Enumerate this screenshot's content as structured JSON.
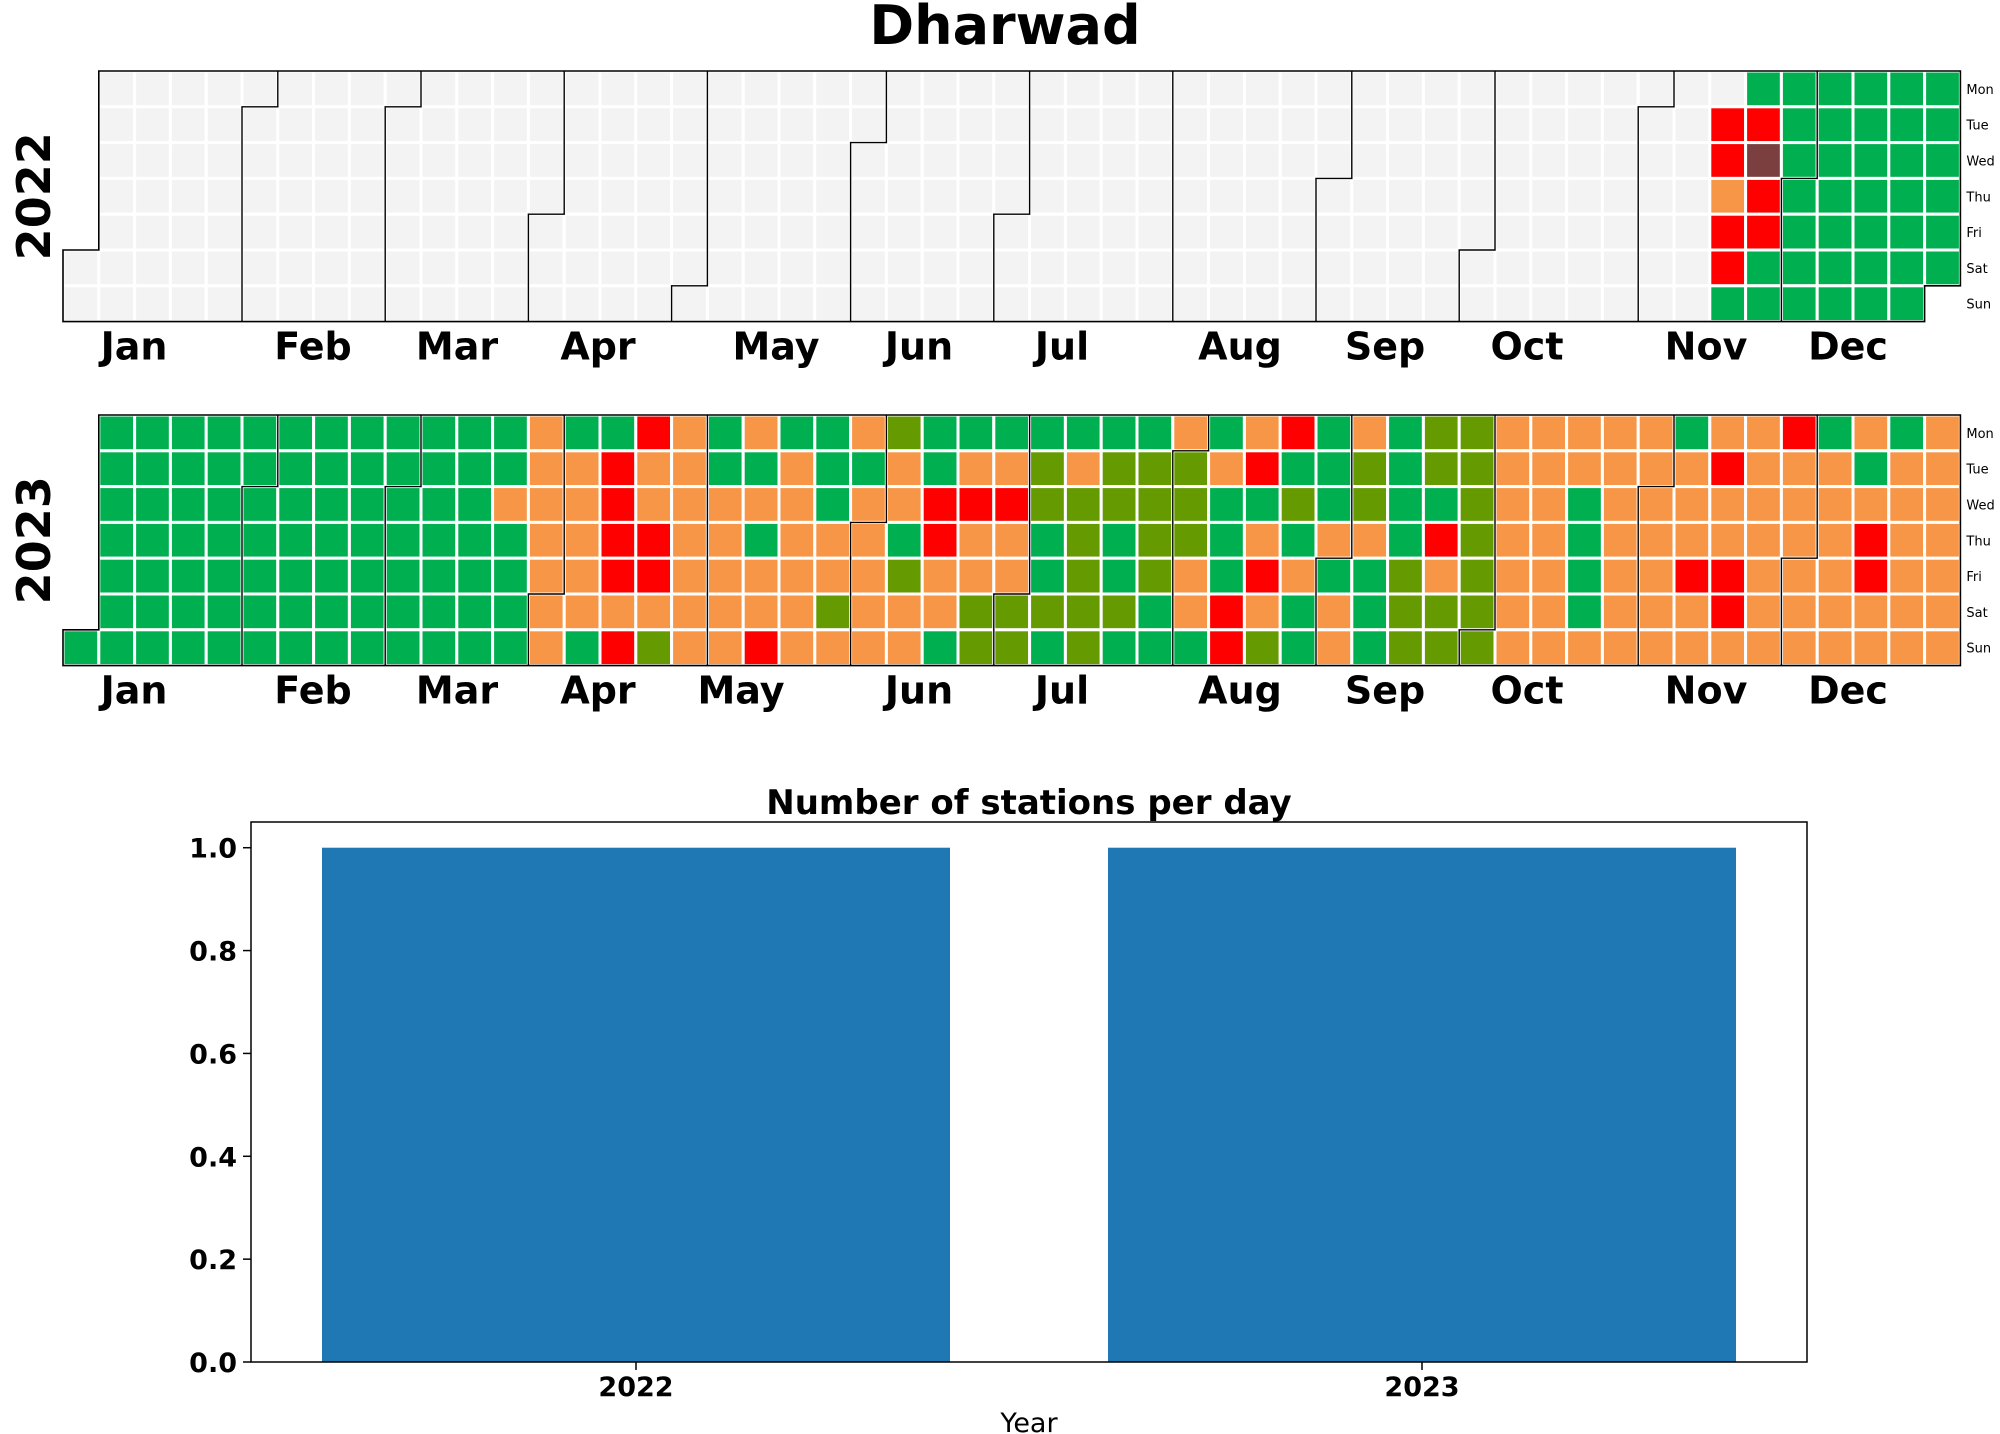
{
  "figure_title": "Dharwad",
  "calendar": {
    "day_labels": [
      "Mon",
      "Tue",
      "Wed",
      "Thu",
      "Fri",
      "Sat",
      "Sun"
    ],
    "month_labels": [
      "Jan",
      "Feb",
      "Mar",
      "Apr",
      "May",
      "Jun",
      "Jul",
      "Aug",
      "Sep",
      "Oct",
      "Nov",
      "Dec"
    ],
    "colors": {
      "no_data": "#f3f3f3",
      "G": "#00b050",
      "L": "#659a00",
      "O": "#f79646",
      "R": "#ff0000",
      "M": "#7b3f3f",
      "W": "#f3f3f3"
    },
    "years": [
      {
        "year": "2022",
        "first_weekday": 5,
        "notes": "columns of 7 chars Mon..Sun; '.' = no data / outside year",
        "weeks": [
          ".....WW",
          "WWWWWWW",
          "WWWWWWW",
          "WWWWWWW",
          "WWWWWWW",
          "WWWWWWW",
          "WWWWWWW",
          "WWWWWWW",
          "WWWWWWW",
          "WWWWWWW",
          "WWWWWWW",
          "WWWWWWW",
          "WWWWWWW",
          "WWWWWWW",
          "WWWWWWW",
          "WWWWWWW",
          "WWWWWWW",
          "WWWWWWW",
          "WWWWWWW",
          "WWWWWWW",
          "WWWWWWW",
          "WWWWWWW",
          "WWWWWWW",
          "WWWWWWW",
          "WWWWWWW",
          "WWWWWWW",
          "WWWWWWW",
          "WWWWWWW",
          "WWWWWWW",
          "WWWWWWW",
          "WWWWWWW",
          "WWWWWWW",
          "WWWWWWW",
          "WWWWWWW",
          "WWWWWWW",
          "WWWWWWW",
          "WWWWWWW",
          "WWWWWWW",
          "WWWWWWW",
          "WWWWWWW",
          "WWWWWWW",
          "WWWWWWW",
          "WWWWWWW",
          "WWWWWWW",
          "WWWWWWW",
          "WWWWWWW",
          "WRRORRG",
          "GRMRRGG",
          "GGGGGGG",
          "GGGGGGG",
          "GGGGGGG",
          "GGGGGGG",
          "GGGGGG."
        ]
      },
      {
        "year": "2023",
        "first_weekday": 6,
        "weeks": [
          "......G",
          "GGGGGGG",
          "GGGGGGG",
          "GGGGGGG",
          "GGGGGGG",
          "GGGGGGG",
          "GGGGGGG",
          "GGGGGGG",
          "GGGGGGG",
          "GGGGGGG",
          "GGGGGGG",
          "GGGGGGG",
          "GGOGGGG",
          "OOOOOOO",
          "GOOOOOG",
          "GRRRROR",
          "ROORROL",
          "OOOOOOO",
          "GGOOOOO",
          "OGOGOOR",
          "GOOOOOO",
          "GGGOOLO",
          "OGOOOOO",
          "LOOGLOO",
          "GGRROOG",
          "GOROOLL",
          "GOROOLL",
          "GLLGGLG",
          "GOLLLLL",
          "GLLGGLG",
          "GLLLLGG",
          "OLLLOOG",
          "GOGGGRR",
          "ORGOROL",
          "RGLGOGG",
          "GGGOGOO",
          "OLLOGGG",
          "GGGGLLL",
          "LLGROLL",
          "LLLLLLL",
          "OOOOOOO",
          "OOOOOOO",
          "OOGGGGO",
          "OOOOOOO",
          "OOOOOOO",
          "GOOOROO",
          "OROORRO",
          "OOOOOOO",
          "ROOOOOO",
          "GOOOOOO",
          "OGORROO",
          "GOOOOOO",
          "OOOOOOO"
        ]
      }
    ]
  },
  "chart_data": {
    "type": "bar",
    "title": "Number of stations per day",
    "categories": [
      "2022",
      "2023"
    ],
    "values": [
      1,
      1
    ],
    "xlabel": "Year",
    "ylabel": "",
    "ylim": [
      0,
      1.05
    ],
    "yticks": [
      "0.0",
      "0.2",
      "0.4",
      "0.6",
      "0.8",
      "1.0"
    ],
    "bar_color": "#1f77b4",
    "grid": false
  }
}
